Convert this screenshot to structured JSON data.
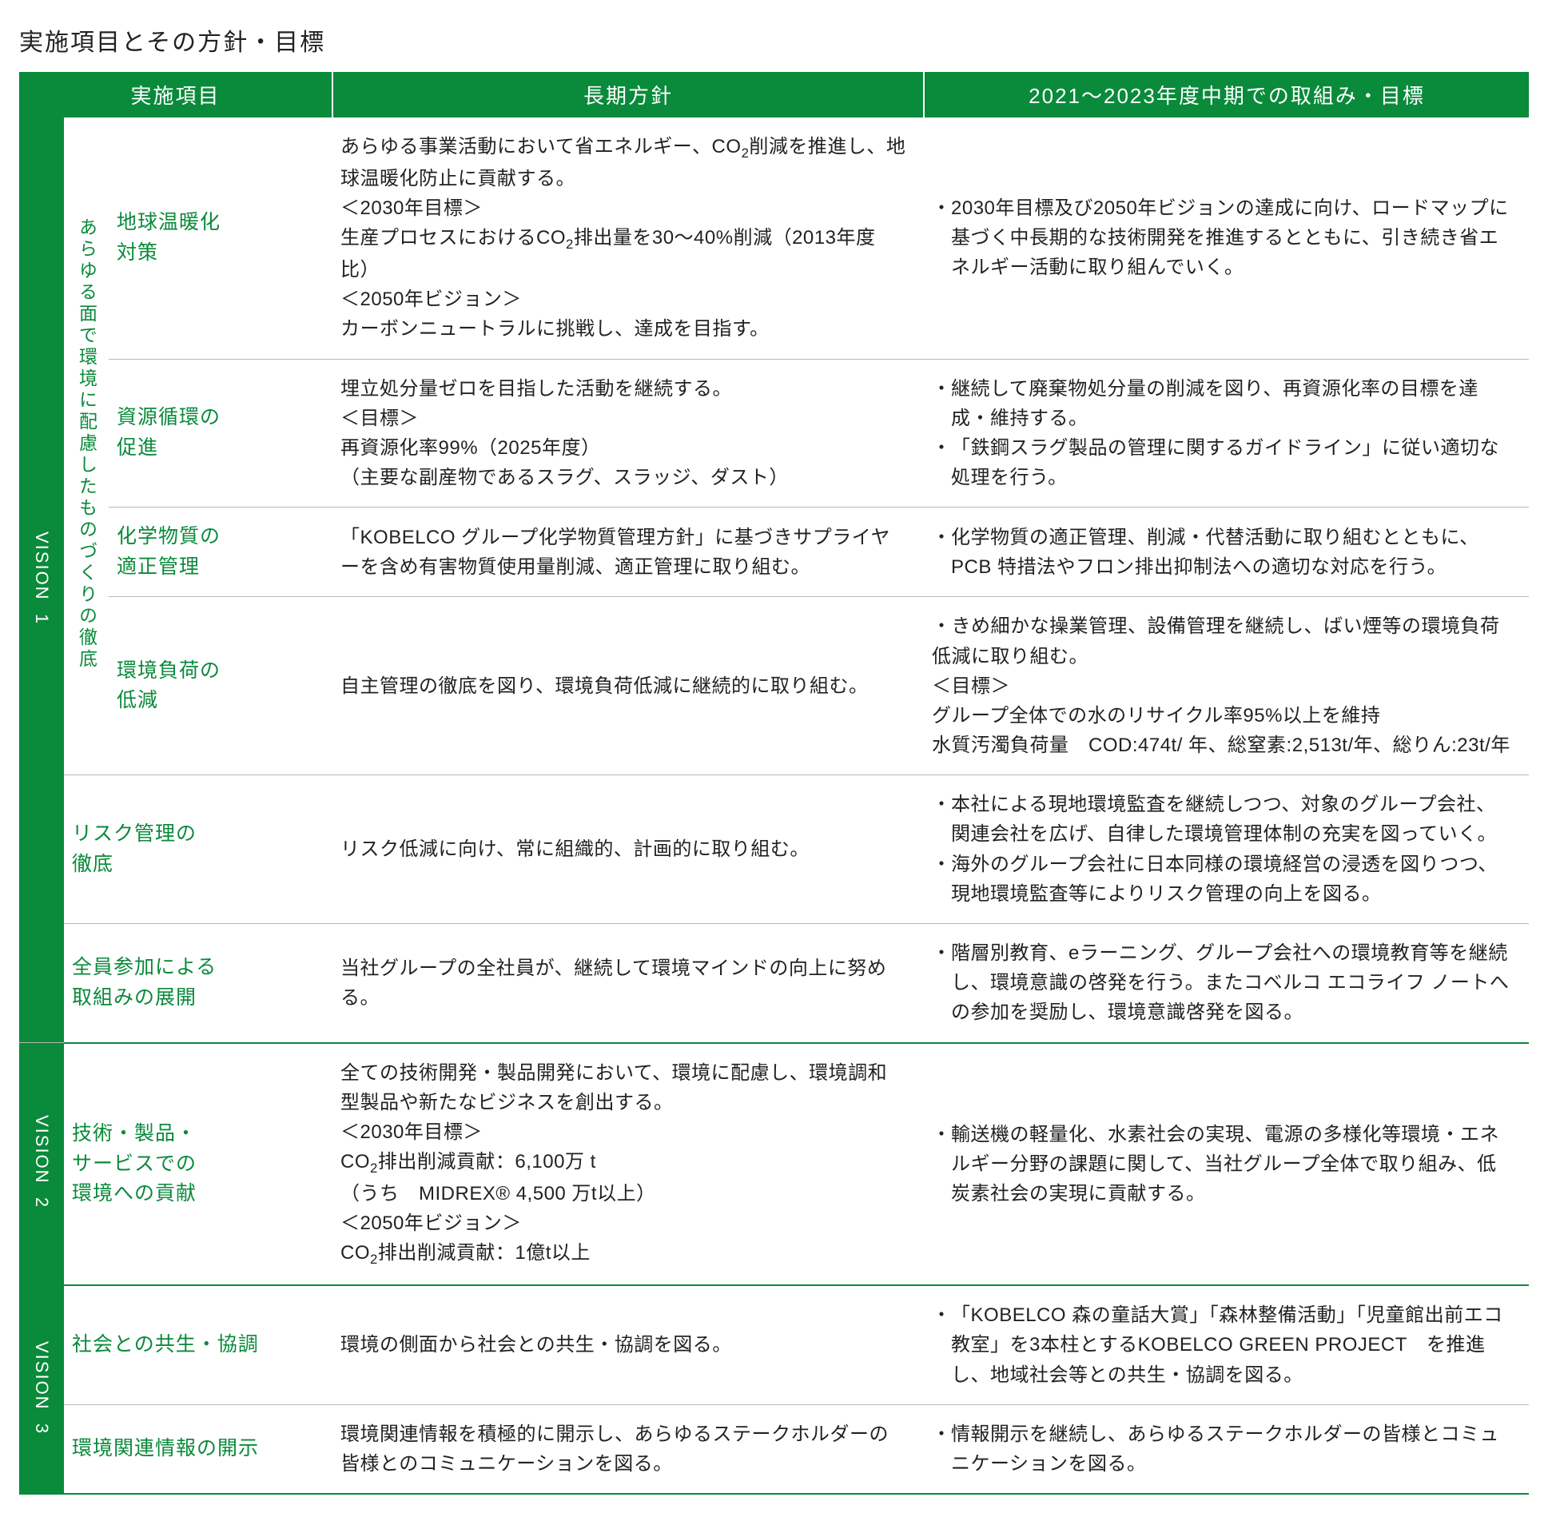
{
  "title": "実施項目とその方針・目標",
  "colors": {
    "brand": "#0a8a3b",
    "rule": "#b8b8b8",
    "text": "#222"
  },
  "headers": {
    "item": "実施項目",
    "policy": "長期方針",
    "target": "2021〜2023年度中期での取組み・目標"
  },
  "visions": [
    {
      "label": "VISION",
      "num": "1",
      "sub": "あらゆる面で環境に配慮したものづくりの徹底"
    },
    {
      "label": "VISION",
      "num": "2"
    },
    {
      "label": "VISION",
      "num": "3"
    }
  ],
  "rows": {
    "r1": {
      "item": "地球温暖化\n対策",
      "policy": "あらゆる事業活動において省エネルギー、CO₂削減を推進し、地球温暖化防止に貢献する。\n＜2030年目標＞\n生産プロセスにおけるCO₂排出量を30〜40%削減（2013年度比）\n＜2050年ビジョン＞\nカーボンニュートラルに挑戦し、達成を目指す。",
      "targets": [
        "2030年目標及び2050年ビジョンの達成に向け、ロードマップに基づく中長期的な技術開発を推進するとともに、引き続き省エネルギー活動に取り組んでいく。"
      ]
    },
    "r2": {
      "item": "資源循環の\n促進",
      "policy": "埋立処分量ゼロを目指した活動を継続する。\n＜目標＞\n再資源化率99%（2025年度）\n（主要な副産物であるスラグ、スラッジ、ダスト）",
      "targets": [
        "継続して廃棄物処分量の削減を図り、再資源化率の目標を達成・維持する。",
        "「鉄鋼スラグ製品の管理に関するガイドライン」に従い適切な処理を行う。"
      ]
    },
    "r3": {
      "item": "化学物質の\n適正管理",
      "policy": "「KOBELCO グループ化学物質管理方針」に基づきサプライヤーを含め有害物質使用量削減、適正管理に取り組む。",
      "targets": [
        "化学物質の適正管理、削減・代替活動に取り組むとともに、PCB 特措法やフロン排出抑制法への適切な対応を行う。"
      ]
    },
    "r4": {
      "item": "環境負荷の\n低減",
      "policy": "自主管理の徹底を図り、環境負荷低減に継続的に取り組む。",
      "target_html": "・きめ細かな操業管理、設備管理を継続し、ばい煙等の環境負荷低減に取り組む。\n＜目標＞\nグループ全体での水のリサイクル率95%以上を維持\n水質汚濁負荷量　COD:474t/ 年、総窒素:2,513t/年、総りん:23t/年"
    },
    "r5": {
      "item": "リスク管理の\n徹底",
      "policy": "リスク低減に向け、常に組織的、計画的に取り組む。",
      "targets": [
        "本社による現地環境監査を継続しつつ、対象のグループ会社、関連会社を広げ、自律した環境管理体制の充実を図っていく。",
        "海外のグループ会社に日本同様の環境経営の浸透を図りつつ、現地環境監査等によりリスク管理の向上を図る。"
      ]
    },
    "r6": {
      "item": "全員参加による\n取組みの展開",
      "policy": "当社グループの全社員が、継続して環境マインドの向上に努める。",
      "targets": [
        "階層別教育、eラーニング、グループ会社への環境教育等を継続し、環境意識の啓発を行う。またコベルコ エコライフ ノートへの参加を奨励し、環境意識啓発を図る。"
      ]
    },
    "r7": {
      "item": "技術・製品・\nサービスでの\n環境への貢献",
      "policy": "全ての技術開発・製品開発において、環境に配慮し、環境調和型製品や新たなビジネスを創出する。\n＜2030年目標＞\nCO₂排出削減貢献：6,100万 t\n（うち　MIDREX® 4,500 万t以上）\n＜2050年ビジョン＞\nCO₂排出削減貢献：1億t以上",
      "targets": [
        "輸送機の軽量化、水素社会の実現、電源の多様化等環境・エネルギー分野の課題に関して、当社グループ全体で取り組み、低炭素社会の実現に貢献する。"
      ]
    },
    "r8": {
      "item": "社会との共生・協調",
      "policy": "環境の側面から社会との共生・協調を図る。",
      "targets": [
        "「KOBELCO 森の童話大賞」「森林整備活動」「児童館出前エコ教室」を3本柱とするKOBELCO GREEN PROJECT　を推進し、地域社会等との共生・協調を図る。"
      ]
    },
    "r9": {
      "item": "環境関連情報の開示",
      "policy": "環境関連情報を積極的に開示し、あらゆるステークホルダーの皆様とのコミュニケーションを図る。",
      "targets": [
        "情報開示を継続し、あらゆるステークホルダーの皆様とコミュニケーションを図る。"
      ]
    }
  }
}
